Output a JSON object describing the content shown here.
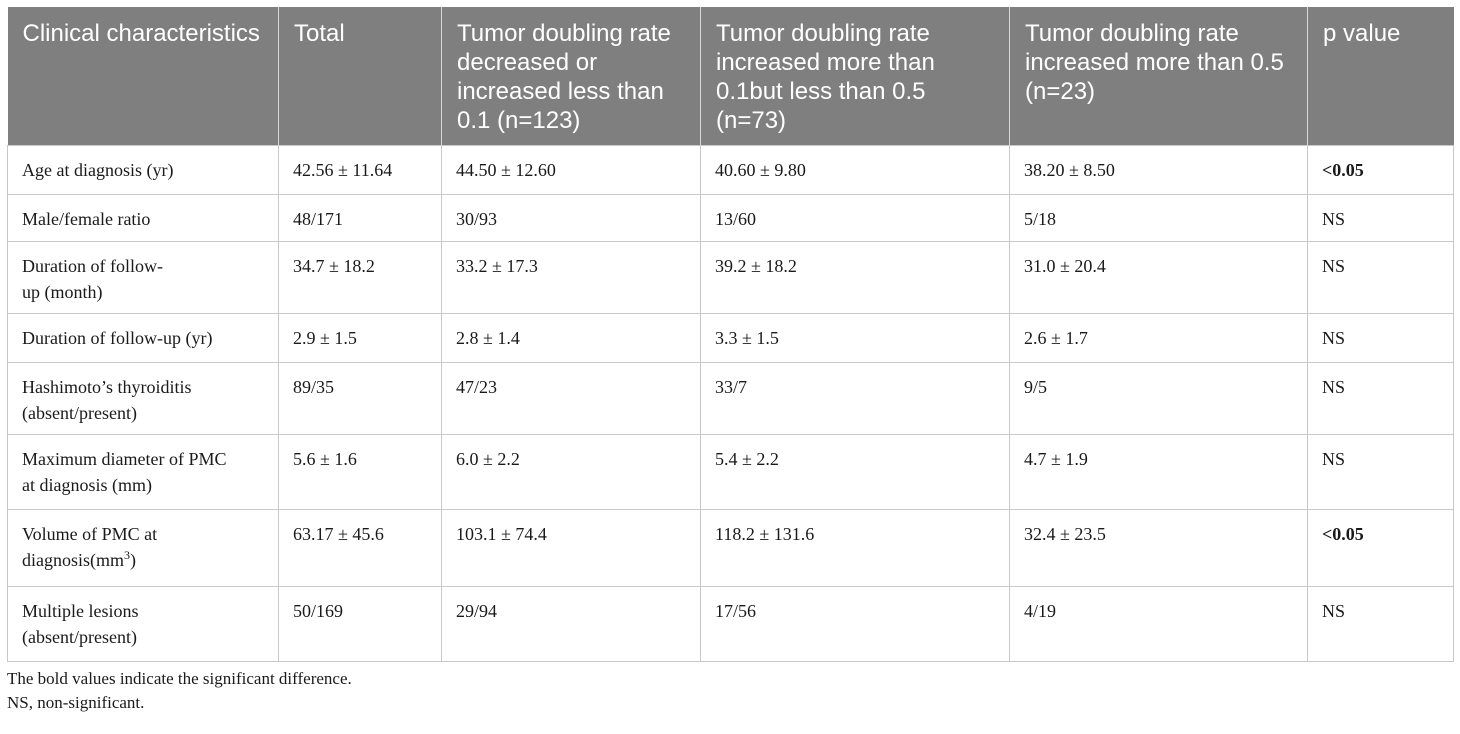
{
  "table": {
    "headers": [
      "Clinical characteristics",
      "Total",
      "Tumor doubling rate decreased or increased less than 0.1 (n=123)",
      "Tumor doubling rate increased more than 0.1but less than 0.5 (n=73)",
      "Tumor doubling rate increased more than 0.5 (n=23)",
      "p value"
    ],
    "rows": [
      {
        "label_a": "Age at diagnosis (yr)",
        "total": "42.56 ± 11.64",
        "g1": "44.50 ± 12.60",
        "g2": "40.60 ± 9.80",
        "g3": "38.20 ± 8.50",
        "p": "<0.05"
      },
      {
        "label_a": "Male/female ratio",
        "total": "48/171",
        "g1": "30/93",
        "g2": "13/60",
        "g3": "5/18",
        "p": "NS"
      },
      {
        "label_a": "Duration of follow-",
        "label_b": "up (month)",
        "total": "34.7 ± 18.2",
        "g1": "33.2 ± 17.3",
        "g2": "39.2 ± 18.2",
        "g3": "31.0 ± 20.4",
        "p": "NS"
      },
      {
        "label_a": "Duration of follow-up (yr)",
        "total": "2.9 ± 1.5",
        "g1": "2.8 ± 1.4",
        "g2": "3.3 ± 1.5",
        "g3": "2.6 ± 1.7",
        "p": "NS"
      },
      {
        "label_a": "Hashimoto’s thyroiditis",
        "label_b": "(absent/present)",
        "total": "89/35",
        "g1": "47/23",
        "g2": "33/7",
        "g3": "9/5",
        "p": "NS"
      },
      {
        "label_a": "Maximum diameter of PMC",
        "label_b": "at diagnosis (mm)",
        "total": "5.6 ± 1.6",
        "g1": "6.0 ± 2.2",
        "g2": "5.4 ± 2.2",
        "g3": "4.7 ± 1.9",
        "p": "NS"
      },
      {
        "label_a": "Volume of PMC at",
        "label_b": "diagnosis(mm",
        "label_sup": "3",
        "label_c": ")",
        "total": "63.17 ± 45.6",
        "g1": "103.1 ± 74.4",
        "g2": "118.2 ± 131.6",
        "g3": "32.4 ± 23.5",
        "p": "<0.05"
      },
      {
        "label_a": "Multiple lesions",
        "label_b": "(absent/present)",
        "total": "50/169",
        "g1": "29/94",
        "g2": "17/56",
        "g3": "4/19",
        "p": "NS"
      }
    ]
  },
  "footnotes": {
    "bold_note": "The bold values indicate the significant difference.",
    "ns_note": "NS, non-significant."
  }
}
